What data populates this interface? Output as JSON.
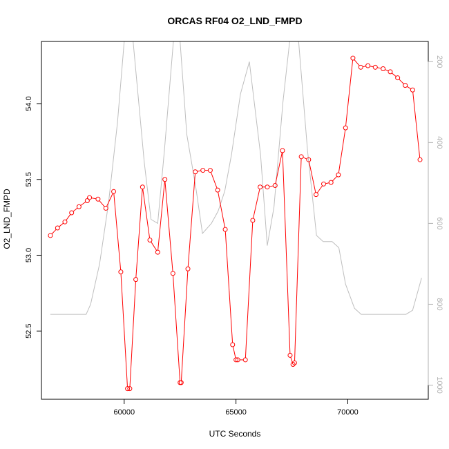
{
  "chart_data": {
    "type": "line",
    "title": "ORCAS RF04 O2_LND_FMPD",
    "xlabel": "UTC Seconds",
    "ylabel": "O2_LND_FMPD",
    "xlim": [
      56300,
      73600
    ],
    "ylim": [
      52.05,
      54.41
    ],
    "x_ticks": [
      60000,
      65000,
      70000
    ],
    "y_ticks": [
      52.5,
      53.0,
      53.5,
      54.0
    ],
    "y2lim": [
      1035,
      150
    ],
    "y2_ticks": [
      200,
      400,
      600,
      800,
      1000
    ],
    "grid": false,
    "colors": {
      "primary": "#ff0000",
      "secondary": "#bebebe"
    },
    "series": [
      {
        "axis": "left",
        "style": "line+circle",
        "x": [
          56700,
          57020,
          57350,
          57650,
          57980,
          58350,
          58450,
          58830,
          59180,
          59530,
          59850,
          60150,
          60250,
          60520,
          60820,
          61150,
          61500,
          61820,
          62180,
          62500,
          62550,
          62850,
          63180,
          63520,
          63850,
          64180,
          64520,
          64850,
          65000,
          65080,
          65420,
          65750,
          66080,
          66400,
          66750,
          67080,
          67420,
          67550,
          67620,
          67920,
          68250,
          68580,
          68920,
          69250,
          69580,
          69900,
          70230,
          70580,
          70900,
          71230,
          71580,
          71900,
          72230,
          72570,
          72900,
          73230
        ],
        "y": [
          53.13,
          53.18,
          53.22,
          53.28,
          53.32,
          53.36,
          53.38,
          53.37,
          53.31,
          53.42,
          52.89,
          52.12,
          52.12,
          52.84,
          53.45,
          53.1,
          53.02,
          53.5,
          52.88,
          52.16,
          52.16,
          52.91,
          53.55,
          53.56,
          53.56,
          53.43,
          53.17,
          52.41,
          52.31,
          52.31,
          52.31,
          53.23,
          53.45,
          53.45,
          53.46,
          53.69,
          52.34,
          52.28,
          52.29,
          53.65,
          53.63,
          53.4,
          53.47,
          53.48,
          53.53,
          53.84,
          54.3,
          54.24,
          54.25,
          54.24,
          54.23,
          54.21,
          54.17,
          54.12,
          54.09,
          53.63
        ]
      },
      {
        "axis": "right",
        "style": "line",
        "x": [
          56700,
          58300,
          58500,
          58900,
          59300,
          59700,
          60000,
          60400,
          60900,
          61200,
          61500,
          61800,
          62200,
          62500,
          62800,
          63200,
          63500,
          63900,
          64200,
          64500,
          64800,
          65200,
          65600,
          66100,
          66400,
          66700,
          67100,
          67400,
          67800,
          68200,
          68600,
          68900,
          69300,
          69600,
          69900,
          70300,
          70600,
          72600,
          72900,
          73300
        ],
        "y": [
          825,
          825,
          800,
          700,
          550,
          350,
          150,
          150,
          450,
          590,
          600,
          420,
          150,
          150,
          380,
          510,
          625,
          600,
          570,
          520,
          430,
          280,
          200,
          430,
          655,
          560,
          300,
          150,
          150,
          420,
          630,
          645,
          645,
          660,
          750,
          810,
          825,
          825,
          815,
          735
        ]
      }
    ]
  }
}
